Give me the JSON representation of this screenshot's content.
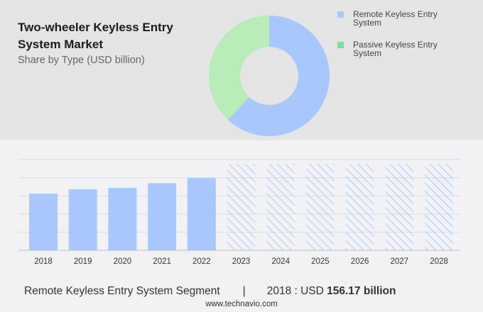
{
  "header": {
    "title": "Two-wheeler Keyless Entry System Market",
    "subtitle": "Share by Type (USD billion)"
  },
  "colors": {
    "remote": "#a8c8fc",
    "passive": "#b8ecb8",
    "passive_legend": "#7ee09a",
    "top_bg": "#e5e5e5",
    "bottom_bg": "#f2f2f4"
  },
  "chart_data": [
    {
      "type": "pie",
      "variant": "donut",
      "legend": "top-right",
      "slices": [
        {
          "name": "Remote Keyless Entry System",
          "share_percent": 62
        },
        {
          "name": "Passive Keyless Entry System",
          "share_percent": 38
        }
      ]
    },
    {
      "type": "bar",
      "categories": [
        "2018",
        "2019",
        "2020",
        "2021",
        "2022",
        "2023",
        "2024",
        "2025",
        "2026",
        "2027",
        "2028"
      ],
      "values": [
        156.17,
        168,
        172,
        185,
        199,
        null,
        null,
        null,
        null,
        null,
        null
      ],
      "forecast": [
        false,
        false,
        false,
        false,
        false,
        true,
        true,
        true,
        true,
        true,
        true
      ],
      "ylim": [
        0,
        250
      ],
      "grid": true
    }
  ],
  "footer": {
    "segment": "Remote Keyless Entry System Segment",
    "separator": "|",
    "year_label": "2018 : USD ",
    "value": "156.17 billion",
    "site": "www.technavio.com"
  }
}
